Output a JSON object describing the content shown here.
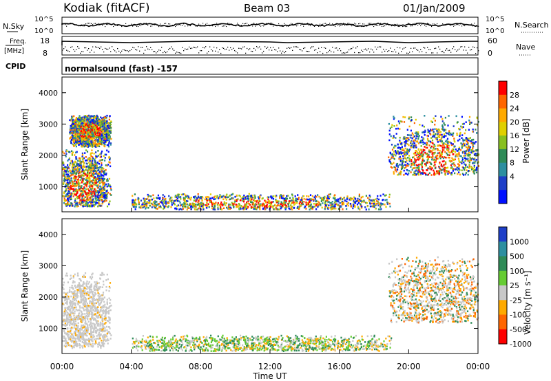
{
  "header": {
    "title": "Kodiak (fitACF)",
    "beam": "Beam 03",
    "date": "01/Jan/2009"
  },
  "top_panels": {
    "nsky_label": "N.Sky",
    "nsky_ticks": [
      "10^5",
      "10^0"
    ],
    "nsearch_label": "N.Search",
    "freq_label_1": "Freq.",
    "freq_label_2": "[MHz]",
    "freq_ticks": [
      "18",
      "8"
    ],
    "nave_label": "Nave",
    "nave_ticks": [
      "60",
      "0"
    ],
    "cpid_label": "CPID",
    "cpid_value": "normalsound (fast) -157"
  },
  "colors": {
    "frame": "#000000",
    "ground_scatter": "#c8c8c8"
  },
  "chart_data": [
    {
      "type": "heatmap",
      "panel": "power",
      "ylabel": "Slant Range [km]",
      "colorbar_label": "Power [dB]",
      "colorbar_ticks": [
        "28",
        "24",
        "20",
        "16",
        "12",
        "8",
        "4"
      ],
      "colorbar_colors": [
        "#ff0000",
        "#ff6600",
        "#ffaa00",
        "#e0d000",
        "#88c020",
        "#2e8b57",
        "#2d8fa0",
        "#1e3fc8",
        "#0010ff"
      ],
      "y_ticks": [
        "4000",
        "3000",
        "2000",
        "1000"
      ],
      "ylim": [
        200,
        4500
      ],
      "xlim": [
        0,
        24
      ],
      "blobs": [
        {
          "x": [
            0.0,
            2.8
          ],
          "y": [
            400,
            2200
          ],
          "values": "8-28 dB",
          "center": [
            1.2,
            1050
          ]
        },
        {
          "x": [
            0.4,
            2.8
          ],
          "y": [
            2300,
            3300
          ],
          "values": "4-20 dB",
          "center": [
            1.6,
            2800
          ]
        },
        {
          "x": [
            4.0,
            19.0
          ],
          "y": [
            300,
            800
          ],
          "values": "8-24 dB",
          "center": [
            11.0,
            500
          ]
        },
        {
          "x": [
            18.8,
            24.0
          ],
          "y": [
            1400,
            3300
          ],
          "values": "8-28 dB",
          "center": [
            21.5,
            1900
          ]
        }
      ]
    },
    {
      "type": "heatmap",
      "panel": "velocity",
      "ylabel": "Slant Range [km]",
      "colorbar_label": "Velocity [m s⁻¹]",
      "colorbar_ticks": [
        "1000",
        "500",
        "100",
        "25",
        "-25",
        "-100",
        "-500",
        "-1000"
      ],
      "colorbar_colors": [
        "#1e3fc8",
        "#2d8fa0",
        "#2e8b57",
        "#66cc33",
        "#c8c8c8",
        "#ffaa00",
        "#ff6600",
        "#ff0000"
      ],
      "y_ticks": [
        "4000",
        "3000",
        "2000",
        "1000"
      ],
      "ylim": [
        200,
        4500
      ],
      "xlim": [
        0,
        24
      ],
      "x_ticks": [
        "00:00",
        "04:00",
        "08:00",
        "12:00",
        "16:00",
        "20:00",
        "00:00"
      ],
      "xlabel": "Time UT",
      "blobs": [
        {
          "x": [
            0.0,
            2.8
          ],
          "y": [
            400,
            2800
          ],
          "values": "ground scatter",
          "center": [
            1.3,
            1300
          ]
        },
        {
          "x": [
            4.0,
            19.0
          ],
          "y": [
            300,
            800
          ],
          "values": "-100 to 100 m/s",
          "center": [
            11.0,
            500
          ]
        },
        {
          "x": [
            18.8,
            24.0
          ],
          "y": [
            1200,
            3300
          ],
          "values": "-500 to 25 m/s",
          "center": [
            21.5,
            2000
          ]
        }
      ]
    }
  ]
}
